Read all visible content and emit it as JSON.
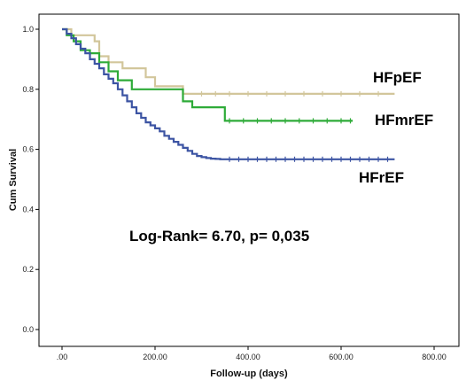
{
  "chart_data": {
    "type": "line",
    "subtype": "kaplan-meier",
    "title": "",
    "xlabel": "Follow-up (days)",
    "ylabel": "Cum Survival",
    "xlim": [
      0,
      800
    ],
    "ylim": [
      0,
      1.05
    ],
    "x_ticks": [
      0,
      200,
      400,
      600,
      800
    ],
    "x_tick_labels": [
      ".00",
      "200.00",
      "400.00",
      "600.00",
      "800.00"
    ],
    "y_ticks": [
      0,
      0.2,
      0.4,
      0.6,
      0.8,
      1.0
    ],
    "y_tick_labels": [
      "0.0",
      "0.2",
      "0.4",
      "0.6",
      "0.8",
      "1.0"
    ],
    "grid": false,
    "annotation": "Log-Rank= 6.70, p= 0,035",
    "series": [
      {
        "name": "HFpEF",
        "color": "#D2C69B",
        "x": [
          0,
          20,
          70,
          80,
          100,
          130,
          180,
          200,
          260,
          715
        ],
        "y": [
          1.0,
          0.98,
          0.96,
          0.91,
          0.89,
          0.87,
          0.84,
          0.81,
          0.785,
          0.785
        ],
        "censor_x": [
          300,
          330,
          360,
          400,
          440,
          480,
          520,
          560,
          600,
          640,
          680
        ]
      },
      {
        "name": "HFmrEF",
        "color": "#2EAB38",
        "x": [
          0,
          10,
          25,
          40,
          60,
          80,
          100,
          120,
          150,
          260,
          280,
          350,
          625
        ],
        "y": [
          1.0,
          0.98,
          0.96,
          0.93,
          0.92,
          0.89,
          0.86,
          0.83,
          0.8,
          0.76,
          0.74,
          0.695,
          0.695
        ],
        "censor_x": [
          360,
          390,
          420,
          450,
          480,
          510,
          540,
          570,
          600,
          620
        ]
      },
      {
        "name": "HFrEF",
        "color": "#3C54A3",
        "x": [
          0,
          10,
          20,
          30,
          40,
          50,
          60,
          70,
          80,
          90,
          100,
          110,
          120,
          130,
          140,
          150,
          160,
          170,
          180,
          190,
          200,
          210,
          220,
          230,
          240,
          250,
          260,
          270,
          280,
          290,
          300,
          310,
          320,
          330,
          340,
          350,
          715
        ],
        "y": [
          1.0,
          0.985,
          0.97,
          0.95,
          0.935,
          0.92,
          0.9,
          0.885,
          0.87,
          0.85,
          0.835,
          0.82,
          0.8,
          0.78,
          0.76,
          0.74,
          0.72,
          0.705,
          0.69,
          0.68,
          0.67,
          0.66,
          0.645,
          0.635,
          0.625,
          0.615,
          0.605,
          0.595,
          0.585,
          0.578,
          0.574,
          0.571,
          0.569,
          0.568,
          0.567,
          0.567,
          0.567
        ],
        "censor_x": [
          360,
          380,
          400,
          420,
          440,
          460,
          480,
          500,
          520,
          540,
          560,
          580,
          600,
          620,
          640,
          660,
          680,
          700
        ]
      }
    ]
  }
}
